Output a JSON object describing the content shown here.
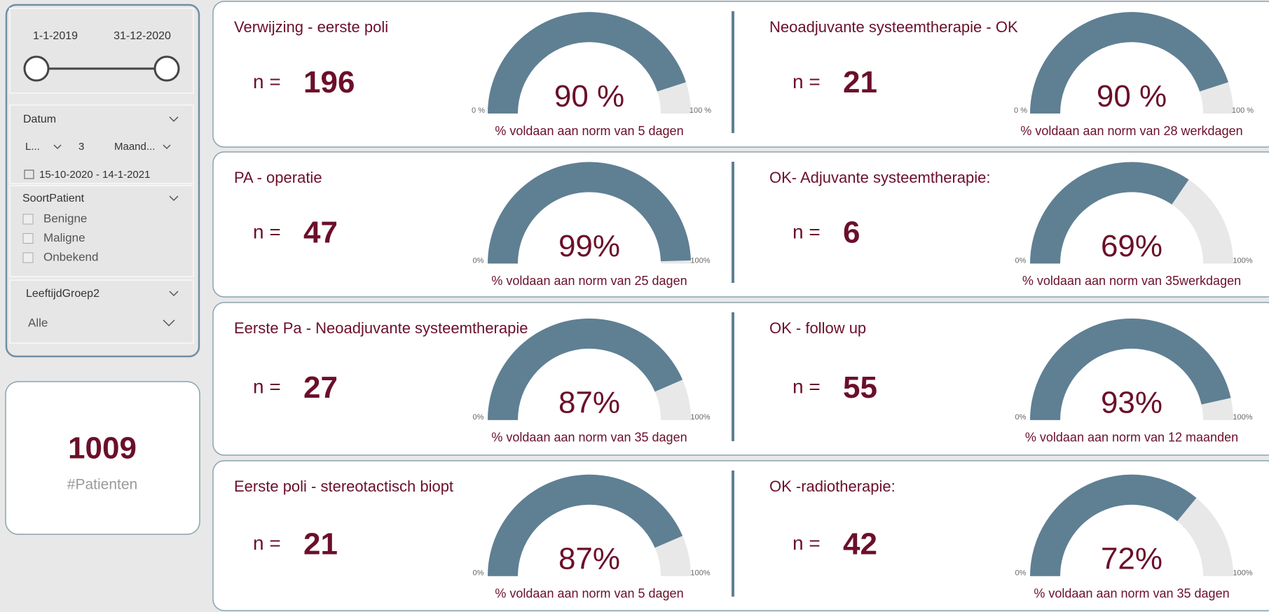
{
  "filters": {
    "date_range": {
      "start": "1-1-2019",
      "end": "31-12-2020"
    },
    "datum": {
      "title": "Datum",
      "mode": "L...",
      "count": "3",
      "unit": "Maand...",
      "range": "15-10-2020 - 14-1-2021"
    },
    "soort_patient": {
      "title": "SoortPatient",
      "options": [
        "Benigne",
        "Maligne",
        "Onbekend"
      ]
    },
    "leeftijd": {
      "title": "LeeftijdGroep2",
      "value": "Alle"
    }
  },
  "kpi": {
    "value": 1009,
    "label": "#Patienten"
  },
  "chart_data": [
    {
      "type": "gauge",
      "title": "Verwijzing - eerste poli",
      "n_label": "n =",
      "n": 196,
      "value": 90,
      "value_label": "90 %",
      "ylim": [
        0,
        100
      ],
      "yticks": [
        {
          "value": 0,
          "label": "0 %"
        },
        {
          "value": 100,
          "label": "100 %"
        }
      ],
      "caption": "% voldaan aan norm van 5 dagen",
      "color": "#5f7f93",
      "track_color": "#e8e8e8"
    },
    {
      "type": "gauge",
      "title": "Neoadjuvante systeemtherapie - OK",
      "n_label": "n =",
      "n": 21,
      "value": 90,
      "value_label": "90 %",
      "ylim": [
        0,
        100
      ],
      "yticks": [
        {
          "value": 0,
          "label": "0 %"
        },
        {
          "value": 100,
          "label": "100 %"
        }
      ],
      "caption": "% voldaan aan norm van 28 werkdagen",
      "color": "#5f7f93",
      "track_color": "#e8e8e8"
    },
    {
      "type": "gauge",
      "title": "PA - operatie",
      "n_label": "n =",
      "n": 47,
      "value": 99,
      "value_label": "99%",
      "ylim": [
        0,
        100
      ],
      "yticks": [
        {
          "value": 0,
          "label": "0%"
        },
        {
          "value": 100,
          "label": "100%"
        }
      ],
      "caption": "% voldaan aan norm van 25 dagen",
      "color": "#5f7f93",
      "track_color": "#e8e8e8"
    },
    {
      "type": "gauge",
      "title": "OK- Adjuvante systeemtherapie:",
      "n_label": "n =",
      "n": 6,
      "value": 69,
      "value_label": "69%",
      "ylim": [
        0,
        100
      ],
      "yticks": [
        {
          "value": 0,
          "label": "0%"
        },
        {
          "value": 100,
          "label": "100%"
        }
      ],
      "caption": "% voldaan aan norm van 35werkdagen",
      "color": "#5f7f93",
      "track_color": "#e8e8e8"
    },
    {
      "type": "gauge",
      "title": "Eerste Pa - Neoadjuvante systeemtherapie",
      "n_label": "n =",
      "n": 27,
      "value": 87,
      "value_label": "87%",
      "ylim": [
        0,
        100
      ],
      "yticks": [
        {
          "value": 0,
          "label": "0%"
        },
        {
          "value": 100,
          "label": "100%"
        }
      ],
      "caption": "% voldaan aan norm van 35 dagen",
      "color": "#5f7f93",
      "track_color": "#e8e8e8"
    },
    {
      "type": "gauge",
      "title": "OK - follow up",
      "n_label": "n =",
      "n": 55,
      "value": 93,
      "value_label": "93%",
      "ylim": [
        0,
        100
      ],
      "yticks": [
        {
          "value": 0,
          "label": "0%"
        },
        {
          "value": 100,
          "label": "100%"
        }
      ],
      "caption": "% voldaan aan norm van 12 maanden",
      "color": "#5f7f93",
      "track_color": "#e8e8e8"
    },
    {
      "type": "gauge",
      "title": "Eerste poli - stereotactisch biopt",
      "n_label": "n =",
      "n": 21,
      "value": 87,
      "value_label": "87%",
      "ylim": [
        0,
        100
      ],
      "yticks": [
        {
          "value": 0,
          "label": "0%"
        },
        {
          "value": 100,
          "label": "100%"
        }
      ],
      "caption": "% voldaan aan norm van 5 dagen",
      "color": "#5f7f93",
      "track_color": "#e8e8e8"
    },
    {
      "type": "gauge",
      "title": "OK -radiotherapie:",
      "n_label": "n =",
      "n": 42,
      "value": 72,
      "value_label": "72%",
      "ylim": [
        0,
        100
      ],
      "yticks": [
        {
          "value": 0,
          "label": "0%"
        },
        {
          "value": 100,
          "label": "100%"
        }
      ],
      "caption": "% voldaan aan norm van 35 dagen",
      "color": "#5f7f93",
      "track_color": "#e8e8e8"
    }
  ]
}
